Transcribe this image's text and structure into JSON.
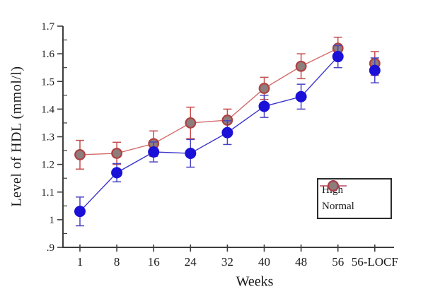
{
  "figure": {
    "background": "#ffffff",
    "axis_color": "#3d3d3d",
    "text_color": "#1a1a1a"
  },
  "legend": {
    "position": "lower-right",
    "border_color": "#2b2b2b"
  },
  "chart_data": {
    "type": "line",
    "title": "",
    "xlabel": "Weeks",
    "ylabel": "Level of HDL (mmol/l)",
    "categories": [
      "1",
      "8",
      "16",
      "24",
      "32",
      "40",
      "48",
      "56",
      "56-LOCF"
    ],
    "ylim": [
      0.9,
      1.7
    ],
    "ytick_values": [
      0.9,
      1.0,
      1.1,
      1.2,
      1.3,
      1.4,
      1.5,
      1.6,
      1.7
    ],
    "ytick_labels": [
      ".9",
      "1",
      "1.1",
      "1.2",
      "1.3",
      "1.4",
      "1.5",
      "1.6",
      "1.7"
    ],
    "minor_ytick_values": [
      0.95,
      1.05,
      1.15,
      1.25,
      1.35,
      1.45,
      1.55,
      1.65
    ],
    "grid": false,
    "error_bars": true,
    "series": [
      {
        "name": "High",
        "line_color": "#3c34cc",
        "marker": "circle",
        "marker_fill": "#1a10d8",
        "marker_stroke": "#1a10d8",
        "errorbar_color": "#4943c0",
        "values": [
          1.03,
          1.17,
          1.245,
          1.24,
          1.315,
          1.41,
          1.445,
          1.59,
          1.54
        ],
        "errors": [
          0.052,
          0.033,
          0.036,
          0.05,
          0.043,
          0.04,
          0.045,
          0.04,
          0.045
        ]
      },
      {
        "name": "Normal",
        "line_color": "#d46a6a",
        "marker": "circle",
        "marker_fill": "#8d7d7d",
        "marker_stroke": "#b04040",
        "errorbar_color": "#c84b4b",
        "values": [
          1.235,
          1.24,
          1.275,
          1.35,
          1.36,
          1.475,
          1.555,
          1.62,
          1.565
        ],
        "errors": [
          0.052,
          0.04,
          0.046,
          0.057,
          0.04,
          0.04,
          0.045,
          0.04,
          0.043
        ]
      }
    ]
  }
}
